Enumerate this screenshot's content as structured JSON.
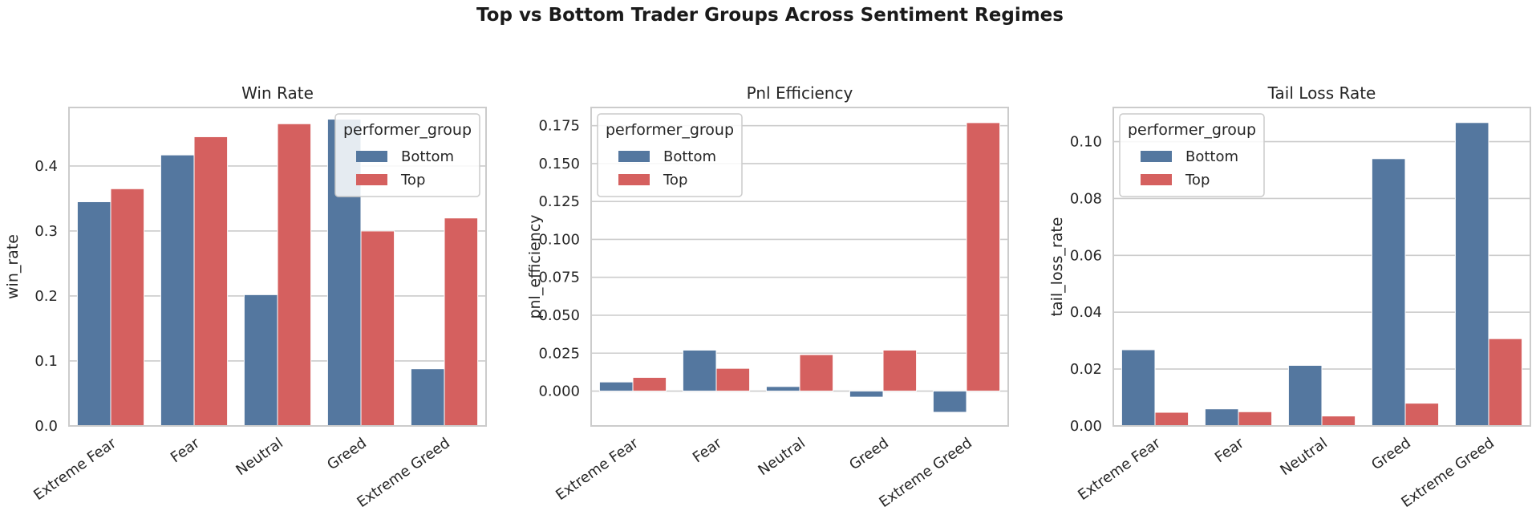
{
  "figure": {
    "title": "Top vs Bottom Trader Groups Across Sentiment Regimes"
  },
  "colors": {
    "Bottom": "#54779f",
    "Top": "#d5605f",
    "grid": "#cccccc",
    "spine": "#cccccc"
  },
  "chart_data": [
    {
      "type": "bar",
      "title": "Win Rate",
      "xlabel": "",
      "ylabel": "win_rate",
      "categories": [
        "Extreme Fear",
        "Fear",
        "Neutral",
        "Greed",
        "Extreme Greed"
      ],
      "ylim": [
        0,
        0.49
      ],
      "yticks": [
        0.0,
        0.1,
        0.2,
        0.3,
        0.4
      ],
      "ytick_labels": [
        "0.0",
        "0.1",
        "0.2",
        "0.3",
        "0.4"
      ],
      "grid": true,
      "legend": {
        "title": "performer_group",
        "placement": "top-right",
        "entries": [
          "Bottom",
          "Top"
        ]
      },
      "series": [
        {
          "name": "Bottom",
          "values": [
            0.345,
            0.417,
            0.202,
            0.472,
            0.088
          ]
        },
        {
          "name": "Top",
          "values": [
            0.365,
            0.445,
            0.465,
            0.3,
            0.32
          ]
        }
      ]
    },
    {
      "type": "bar",
      "title": "Pnl Efficiency",
      "xlabel": "",
      "ylabel": "pnl_efficiency",
      "categories": [
        "Extreme Fear",
        "Fear",
        "Neutral",
        "Greed",
        "Extreme Greed"
      ],
      "ylim": [
        -0.023,
        0.187
      ],
      "yticks": [
        0.0,
        0.025,
        0.05,
        0.075,
        0.1,
        0.125,
        0.15,
        0.175
      ],
      "ytick_labels": [
        "0.000",
        "0.025",
        "0.050",
        "0.075",
        "0.100",
        "0.125",
        "0.150",
        "0.175"
      ],
      "grid": true,
      "legend": {
        "title": "performer_group",
        "placement": "top-left",
        "entries": [
          "Bottom",
          "Top"
        ]
      },
      "series": [
        {
          "name": "Bottom",
          "values": [
            0.006,
            0.027,
            0.003,
            -0.004,
            -0.014
          ]
        },
        {
          "name": "Top",
          "values": [
            0.009,
            0.015,
            0.024,
            0.027,
            0.177
          ]
        }
      ]
    },
    {
      "type": "bar",
      "title": "Tail Loss Rate",
      "xlabel": "",
      "ylabel": "tail_loss_rate",
      "categories": [
        "Extreme Fear",
        "Fear",
        "Neutral",
        "Greed",
        "Extreme Greed"
      ],
      "ylim": [
        0,
        0.112
      ],
      "yticks": [
        0.0,
        0.02,
        0.04,
        0.06,
        0.08,
        0.1
      ],
      "ytick_labels": [
        "0.00",
        "0.02",
        "0.04",
        "0.06",
        "0.08",
        "0.10"
      ],
      "grid": true,
      "legend": {
        "title": "performer_group",
        "placement": "top-left",
        "entries": [
          "Bottom",
          "Top"
        ]
      },
      "series": [
        {
          "name": "Bottom",
          "values": [
            0.0268,
            0.006,
            0.0213,
            0.094,
            0.1067
          ]
        },
        {
          "name": "Top",
          "values": [
            0.0048,
            0.005,
            0.0035,
            0.008,
            0.0307
          ]
        }
      ]
    }
  ]
}
